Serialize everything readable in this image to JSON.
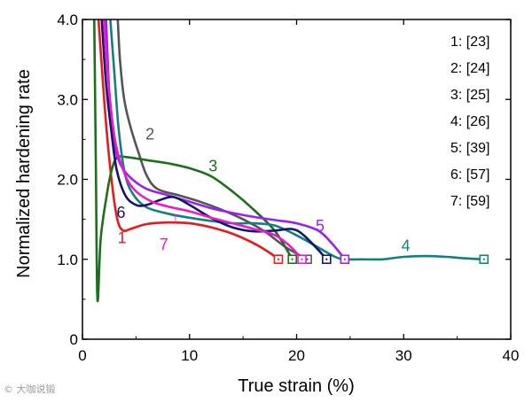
{
  "chart_data": {
    "type": "line",
    "title": "",
    "xlabel": "True strain (%)",
    "ylabel": "Normalized hardening rate",
    "xlim": [
      0,
      40
    ],
    "ylim": [
      0,
      4.0
    ],
    "xticks": [
      0,
      10,
      20,
      30,
      40
    ],
    "yticks": [
      0,
      1.0,
      2.0,
      3.0,
      4.0
    ],
    "xtick_labels": [
      "0",
      "10",
      "20",
      "30",
      "40"
    ],
    "ytick_labels": [
      "0",
      "1.0",
      "2.0",
      "3.0",
      "4.0"
    ],
    "grid": false,
    "legend_position": "top-right",
    "legend": [
      "1: [23]",
      "2: [24]",
      "3: [25]",
      "4: [26]",
      "5: [39]",
      "6: [57]",
      "7: [59]"
    ],
    "series": [
      {
        "name": "1",
        "ref": "[23]",
        "color": "#e8191b",
        "label_pos": [
          3.7,
          1.2
        ],
        "points": [
          [
            1.5,
            4.0
          ],
          [
            2.2,
            2.7
          ],
          [
            2.8,
            1.9
          ],
          [
            3.3,
            1.48
          ],
          [
            3.8,
            1.36
          ],
          [
            4.5,
            1.38
          ],
          [
            6,
            1.44
          ],
          [
            8,
            1.46
          ],
          [
            10,
            1.45
          ],
          [
            12,
            1.4
          ],
          [
            14,
            1.32
          ],
          [
            16,
            1.2
          ],
          [
            17.5,
            1.08
          ],
          [
            18.3,
            1.0
          ]
        ]
      },
      {
        "name": "2",
        "ref": "[24]",
        "color": "#555555",
        "label_pos": [
          6.3,
          2.5
        ],
        "points": [
          [
            3.3,
            4.0
          ],
          [
            3.5,
            3.5
          ],
          [
            3.9,
            3.0
          ],
          [
            4.5,
            2.65
          ],
          [
            5.2,
            2.35
          ],
          [
            6,
            2.05
          ],
          [
            7,
            1.88
          ],
          [
            9,
            1.8
          ],
          [
            11,
            1.72
          ],
          [
            13,
            1.62
          ],
          [
            15,
            1.5
          ],
          [
            17,
            1.35
          ],
          [
            19,
            1.15
          ],
          [
            21,
            1.0
          ]
        ]
      },
      {
        "name": "3",
        "ref": "[25]",
        "color": "#1e6e1e",
        "label_pos": [
          12.2,
          2.1
        ],
        "points": [
          [
            1.1,
            4.0
          ],
          [
            1.25,
            2.2
          ],
          [
            1.4,
            0.5
          ],
          [
            1.7,
            1.25
          ],
          [
            2.2,
            1.75
          ],
          [
            2.7,
            2.1
          ],
          [
            3.2,
            2.27
          ],
          [
            4,
            2.28
          ],
          [
            6,
            2.24
          ],
          [
            8,
            2.2
          ],
          [
            10,
            2.14
          ],
          [
            12,
            2.04
          ],
          [
            14,
            1.85
          ],
          [
            16,
            1.62
          ],
          [
            18,
            1.35
          ],
          [
            19.6,
            1.0
          ]
        ]
      },
      {
        "name": "4",
        "ref": "[26]",
        "color": "#118080",
        "label_pos": [
          30.2,
          1.1
        ],
        "points": [
          [
            2.6,
            4.0
          ],
          [
            3,
            3.3
          ],
          [
            3.4,
            2.6
          ],
          [
            4,
            2.05
          ],
          [
            4.8,
            1.8
          ],
          [
            6,
            1.65
          ],
          [
            8,
            1.57
          ],
          [
            10,
            1.52
          ],
          [
            12,
            1.48
          ],
          [
            14,
            1.45
          ],
          [
            16,
            1.45
          ],
          [
            18,
            1.42
          ],
          [
            20,
            1.3
          ],
          [
            22,
            1.15
          ],
          [
            23.6,
            1.03
          ],
          [
            24.5,
            1.0
          ],
          [
            26,
            1.0
          ],
          [
            28,
            1.0
          ],
          [
            30,
            1.03
          ],
          [
            32,
            1.04
          ],
          [
            34,
            1.03
          ],
          [
            36,
            1.01
          ],
          [
            37.5,
            1.0
          ]
        ]
      },
      {
        "name": "5",
        "ref": "[39]",
        "color": "#9a22e8",
        "label_pos": [
          22.2,
          1.35
        ],
        "points": [
          [
            2.2,
            4.0
          ],
          [
            2.5,
            3.1
          ],
          [
            2.9,
            2.5
          ],
          [
            3.5,
            2.2
          ],
          [
            4.5,
            2.02
          ],
          [
            6,
            1.88
          ],
          [
            8,
            1.8
          ],
          [
            10,
            1.72
          ],
          [
            12,
            1.64
          ],
          [
            14,
            1.58
          ],
          [
            16,
            1.53
          ],
          [
            18,
            1.49
          ],
          [
            20,
            1.45
          ],
          [
            22,
            1.36
          ],
          [
            23.3,
            1.2
          ],
          [
            24.5,
            1.0
          ]
        ]
      },
      {
        "name": "6",
        "ref": "[57]",
        "color": "#151570",
        "label_pos": [
          3.6,
          1.52
        ],
        "points": [
          [
            1.8,
            4.0
          ],
          [
            2.2,
            3.2
          ],
          [
            2.7,
            2.6
          ],
          [
            3.2,
            2.12
          ],
          [
            4,
            1.8
          ],
          [
            5,
            1.68
          ],
          [
            6,
            1.68
          ],
          [
            7.2,
            1.74
          ],
          [
            8.5,
            1.78
          ],
          [
            10,
            1.68
          ],
          [
            12,
            1.52
          ],
          [
            14,
            1.4
          ],
          [
            16,
            1.35
          ],
          [
            18,
            1.36
          ],
          [
            19.5,
            1.38
          ],
          [
            20.5,
            1.32
          ],
          [
            21.8,
            1.15
          ],
          [
            22.8,
            1.0
          ]
        ]
      },
      {
        "name": "7",
        "ref": "[59]",
        "color": "#e81ccc",
        "label_pos": [
          7.6,
          1.12
        ],
        "points": [
          [
            2.0,
            4.0
          ],
          [
            2.5,
            3.1
          ],
          [
            3.1,
            2.45
          ],
          [
            4,
            2.05
          ],
          [
            5,
            1.85
          ],
          [
            6.5,
            1.72
          ],
          [
            8,
            1.66
          ],
          [
            10,
            1.6
          ],
          [
            12,
            1.52
          ],
          [
            14,
            1.45
          ],
          [
            16,
            1.38
          ],
          [
            18,
            1.3
          ],
          [
            19.5,
            1.15
          ],
          [
            20.5,
            1.0
          ]
        ]
      }
    ],
    "annotations": [
      {
        "text": "↑",
        "series": "7",
        "at": [
          8.7,
          1.45
        ]
      }
    ]
  },
  "watermark": "© 大咖说锻"
}
